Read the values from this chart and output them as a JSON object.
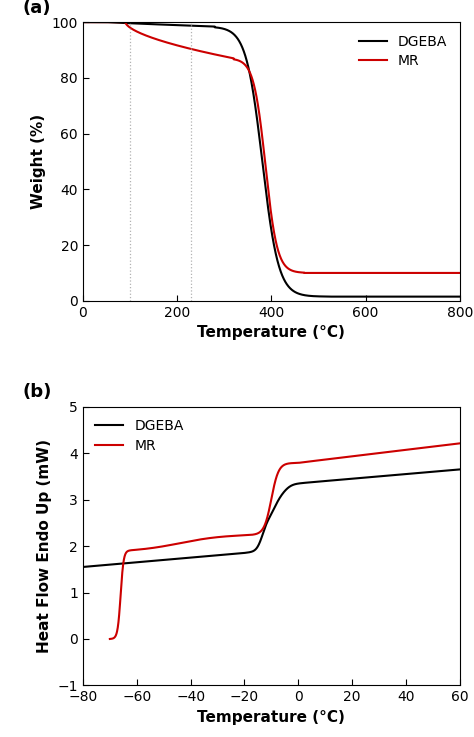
{
  "panel_a": {
    "title_label": "(a)",
    "xlabel": "Temperature (°C)",
    "ylabel": "Weight (%)",
    "xlim": [
      0,
      800
    ],
    "ylim": [
      0,
      100
    ],
    "xticks": [
      0,
      200,
      400,
      600,
      800
    ],
    "yticks": [
      0,
      20,
      40,
      60,
      80,
      100
    ],
    "vlines": [
      100,
      230
    ],
    "vline_color": "#aaaaaa",
    "vline_style": ":",
    "dgeba_color": "#000000",
    "mr_color": "#cc0000",
    "legend_labels": [
      "DGEBA",
      "MR"
    ]
  },
  "panel_b": {
    "title_label": "(b)",
    "xlabel": "Temperature (°C)",
    "ylabel": "Heat Flow Endo Up (mW)",
    "xlim": [
      -80,
      60
    ],
    "ylim": [
      -1,
      5
    ],
    "xticks": [
      -80,
      -60,
      -40,
      -20,
      0,
      20,
      40,
      60
    ],
    "yticks": [
      -1,
      0,
      1,
      2,
      3,
      4,
      5
    ],
    "dgeba_color": "#000000",
    "mr_color": "#cc0000",
    "legend_labels": [
      "DGEBA",
      "MR"
    ]
  }
}
